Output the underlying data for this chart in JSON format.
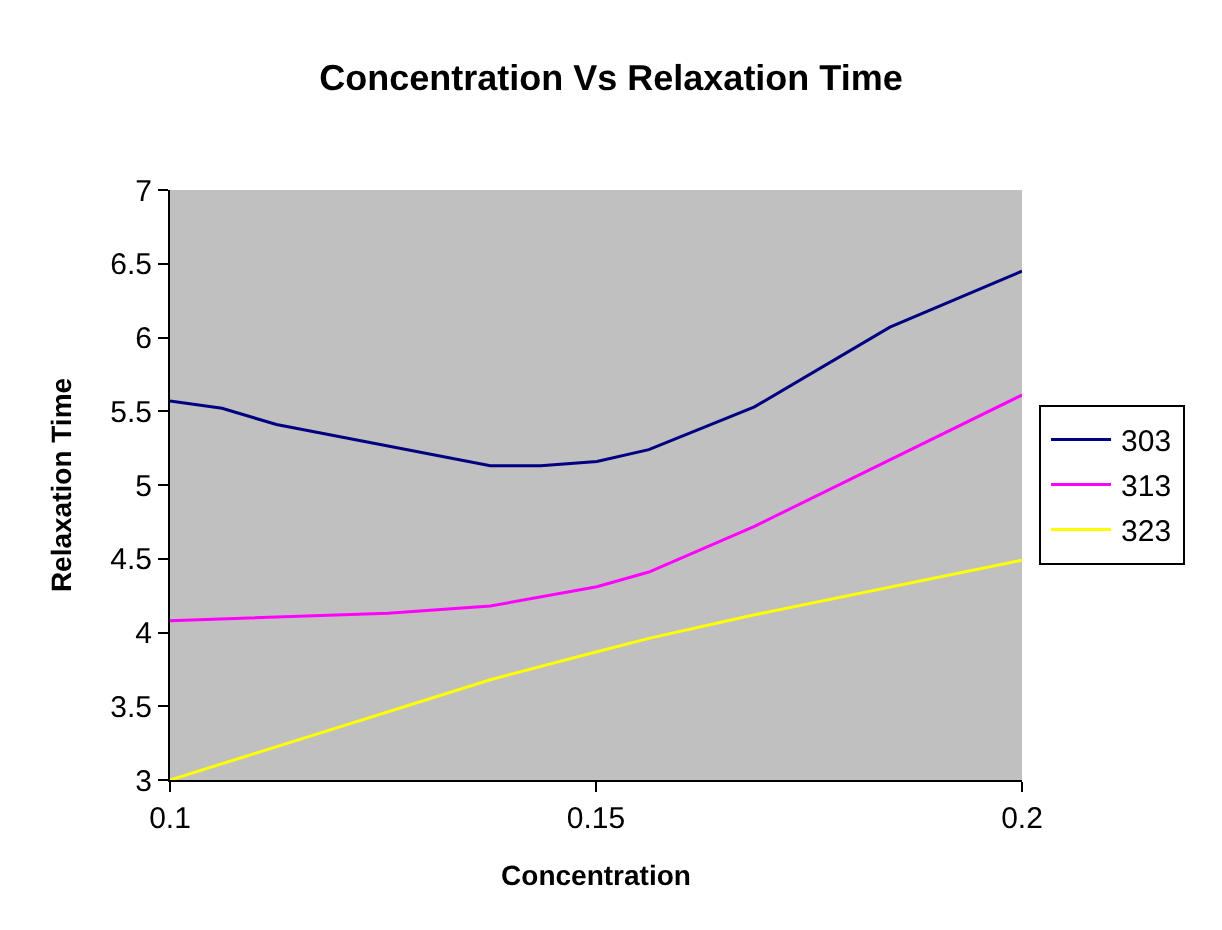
{
  "chart_data": {
    "type": "line",
    "title": "Concentration Vs Relaxation Time",
    "xlabel": "Concentration",
    "ylabel": "Relaxation Time",
    "xlim": [
      0.1,
      0.2
    ],
    "xticks": [
      0.1,
      0.15,
      0.2
    ],
    "ylim": [
      3,
      7
    ],
    "yticks": [
      3,
      3.5,
      4,
      4.5,
      5,
      5.5,
      6,
      6.5,
      7
    ],
    "grid": false,
    "legend": "right",
    "marker": "none",
    "line_style": "solid",
    "series": [
      {
        "name": "303",
        "color": "#000080",
        "x": [
          0.1,
          0.1061,
          0.1125,
          0.1376,
          0.1435,
          0.1501,
          0.1562,
          0.1686,
          0.1845,
          0.2
        ],
        "values": [
          5.57,
          5.52,
          5.41,
          5.13,
          5.13,
          5.16,
          5.24,
          5.53,
          6.07,
          6.45
        ]
      },
      {
        "name": "313",
        "color": "#ff00ff",
        "x": [
          0.1,
          0.1256,
          0.1376,
          0.1501,
          0.1562,
          0.1686,
          0.2
        ],
        "values": [
          4.08,
          4.13,
          4.18,
          4.31,
          4.41,
          4.72,
          5.61
        ]
      },
      {
        "name": "323",
        "color": "#ffff00",
        "x": [
          0.1,
          0.1376,
          0.1501,
          0.1562,
          0.1686,
          0.2
        ],
        "values": [
          3.0,
          3.68,
          3.87,
          3.96,
          4.12,
          4.49
        ]
      }
    ]
  }
}
